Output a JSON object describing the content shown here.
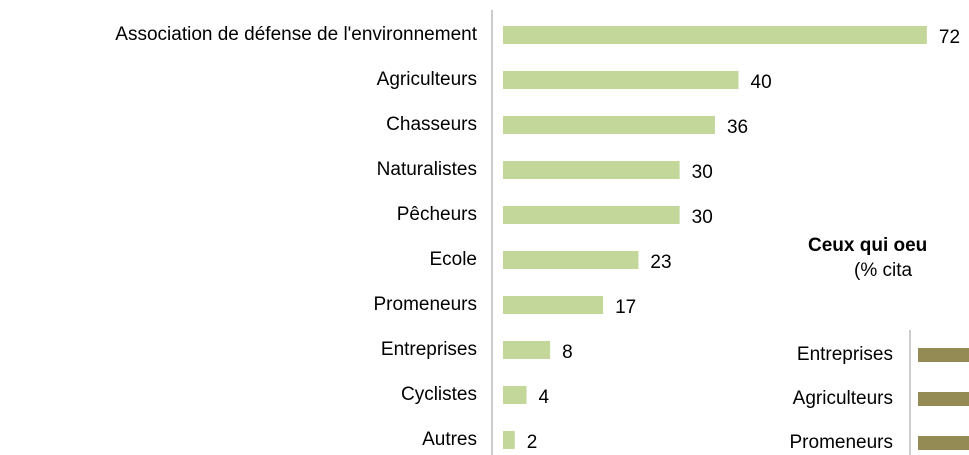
{
  "chart_data": [
    {
      "type": "hbar",
      "categories": [
        "Association de défense de l'environnement",
        "Agriculteurs",
        "Chasseurs",
        "Naturalistes",
        "Pêcheurs",
        "Ecole",
        "Promeneurs",
        "Entreprises",
        "Cyclistes",
        "Autres"
      ],
      "values": [
        72,
        40,
        36,
        30,
        30,
        23,
        17,
        8,
        4,
        2
      ],
      "color": "#c4d79b",
      "xlim": [
        0,
        80
      ]
    },
    {
      "type": "hbar-partial",
      "title": "Ceux qui oeu",
      "subtitle": "(% cita",
      "categories": [
        "Entreprises",
        "Agriculteurs",
        "Promeneurs"
      ],
      "color": "#948a54"
    }
  ]
}
